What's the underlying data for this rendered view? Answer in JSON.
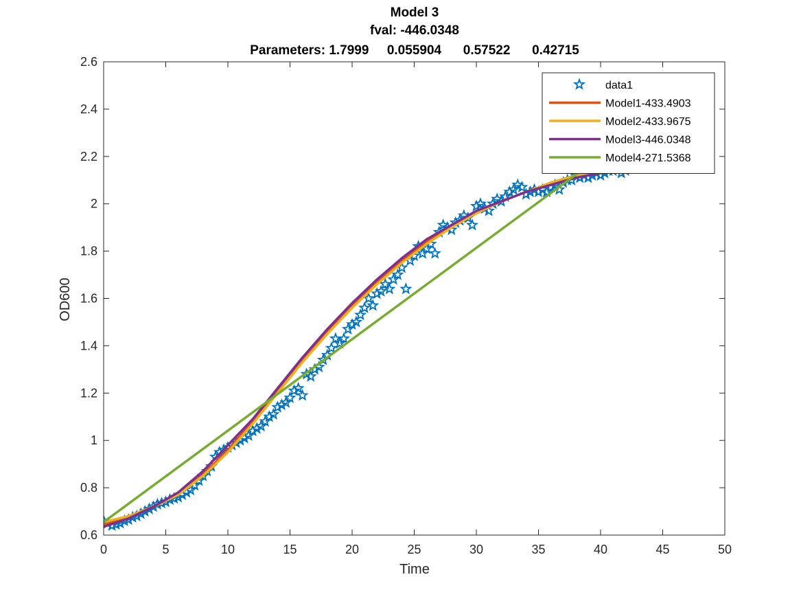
{
  "chart_data": {
    "type": "line",
    "title": "Model 3",
    "subtitle": "fval: -446.0348",
    "parameters_line": "Parameters: 1.7999     0.055904      0.57522      0.42715",
    "xlabel": "Time",
    "ylabel": "OD600",
    "xlim": [
      0,
      50
    ],
    "ylim": [
      0.6,
      2.6
    ],
    "x_ticks": [
      0,
      5,
      10,
      15,
      20,
      25,
      30,
      35,
      40,
      45,
      50
    ],
    "y_ticks": [
      0.6,
      0.8,
      1.0,
      1.2,
      1.4,
      1.6,
      1.8,
      2.0,
      2.2,
      2.4,
      2.6
    ],
    "y_tick_labels": [
      "0.6",
      "0.8",
      "1",
      "1.2",
      "1.4",
      "1.6",
      "1.8",
      "2",
      "2.2",
      "2.4",
      "2.6"
    ],
    "grid": false,
    "legend_position": "top-right",
    "series": [
      {
        "name": "data1",
        "kind": "scatter",
        "marker": "pentagram",
        "color": "#0072BD",
        "x": [
          0,
          0.33,
          0.67,
          1,
          1.33,
          1.67,
          2,
          2.33,
          2.67,
          3,
          3.33,
          3.67,
          4,
          4.33,
          4.67,
          5,
          5.33,
          5.67,
          6,
          6.33,
          6.67,
          7,
          7.33,
          7.67,
          8,
          8.33,
          8.67,
          9,
          9.33,
          9.67,
          10,
          10.33,
          10.67,
          11,
          11.33,
          11.67,
          12,
          12.33,
          12.67,
          13,
          13.33,
          13.67,
          14,
          14.33,
          14.67,
          15,
          15.33,
          15.67,
          16,
          16.33,
          16.67,
          17,
          17.33,
          17.67,
          18,
          18.33,
          18.67,
          19,
          19.33,
          19.67,
          20,
          20.33,
          20.67,
          21,
          21.33,
          21.67,
          22,
          22.33,
          22.67,
          23,
          23.33,
          23.67,
          24,
          24.33,
          24.67,
          25,
          25.33,
          25.67,
          26,
          26.33,
          26.67,
          27,
          27.33,
          27.67,
          28,
          28.33,
          28.67,
          29,
          29.33,
          29.67,
          30,
          30.33,
          30.67,
          31,
          31.33,
          31.67,
          32,
          32.33,
          32.67,
          33,
          33.33,
          33.67,
          34,
          34.33,
          34.67,
          35,
          35.33,
          35.67,
          36,
          36.33,
          36.67,
          37,
          37.33,
          37.67,
          38,
          38.33,
          38.67,
          39,
          39.33,
          39.67,
          40,
          40.33,
          40.67,
          41,
          41.33,
          41.67,
          42,
          42.33,
          42.67,
          43,
          43.33,
          43.67,
          44,
          44.33
        ],
        "y": [
          0.66,
          0.65,
          0.64,
          0.645,
          0.65,
          0.66,
          0.665,
          0.675,
          0.68,
          0.69,
          0.7,
          0.71,
          0.72,
          0.73,
          0.735,
          0.74,
          0.75,
          0.755,
          0.76,
          0.77,
          0.78,
          0.79,
          0.81,
          0.83,
          0.85,
          0.87,
          0.89,
          0.93,
          0.95,
          0.96,
          0.97,
          0.98,
          0.99,
          1.0,
          1.01,
          1.02,
          1.04,
          1.05,
          1.06,
          1.08,
          1.1,
          1.11,
          1.14,
          1.15,
          1.16,
          1.18,
          1.21,
          1.22,
          1.19,
          1.28,
          1.27,
          1.3,
          1.31,
          1.34,
          1.36,
          1.39,
          1.43,
          1.41,
          1.43,
          1.47,
          1.49,
          1.5,
          1.53,
          1.56,
          1.6,
          1.57,
          1.62,
          1.63,
          1.66,
          1.64,
          1.68,
          1.7,
          1.73,
          1.64,
          1.76,
          1.78,
          1.82,
          1.79,
          1.81,
          1.83,
          1.79,
          1.88,
          1.91,
          1.9,
          1.89,
          1.92,
          1.93,
          1.95,
          1.94,
          1.91,
          1.99,
          2.0,
          1.98,
          1.97,
          2.0,
          2.02,
          2.01,
          2.03,
          2.05,
          2.06,
          2.08,
          2.07,
          2.04,
          2.05,
          2.06,
          2.05,
          2.06,
          2.05,
          2.07,
          2.08,
          2.06,
          2.09,
          2.1,
          2.1,
          2.12,
          2.11,
          2.12,
          2.11,
          2.12,
          2.13,
          2.12,
          2.13,
          2.14,
          2.14,
          2.15,
          2.13,
          2.14,
          2.16,
          2.15,
          2.16,
          2.17,
          2.16,
          2.17,
          2.18
        ]
      },
      {
        "name": "Model1-433.4903",
        "kind": "line",
        "color": "#D95319",
        "x": [
          0,
          2,
          4,
          6,
          8,
          10,
          12,
          14,
          16,
          18,
          20,
          22,
          24,
          26,
          28,
          30,
          32,
          34,
          36,
          38,
          40,
          42,
          44,
          46.5
        ],
        "y": [
          0.645,
          0.675,
          0.72,
          0.77,
          0.855,
          0.96,
          1.08,
          1.21,
          1.34,
          1.46,
          1.57,
          1.67,
          1.76,
          1.84,
          1.9,
          1.96,
          2.01,
          2.05,
          2.08,
          2.11,
          2.13,
          2.15,
          2.17,
          2.19
        ]
      },
      {
        "name": "Model2-433.9675",
        "kind": "line",
        "color": "#EDB120",
        "x": [
          0,
          2,
          4,
          6,
          8,
          10,
          12,
          14,
          16,
          18,
          20,
          22,
          24,
          26,
          28,
          30,
          32,
          34,
          36,
          38,
          40,
          42,
          44,
          46.5
        ],
        "y": [
          0.655,
          0.68,
          0.72,
          0.77,
          0.85,
          0.95,
          1.07,
          1.2,
          1.33,
          1.45,
          1.56,
          1.66,
          1.75,
          1.83,
          1.9,
          1.96,
          2.01,
          2.05,
          2.09,
          2.12,
          2.14,
          2.16,
          2.18,
          2.2
        ]
      },
      {
        "name": "Model3-446.0348",
        "kind": "line",
        "color": "#7E2F8E",
        "x": [
          0,
          2,
          4,
          6,
          8,
          10,
          12,
          14,
          16,
          18,
          20,
          22,
          24,
          26,
          28,
          30,
          32,
          34,
          36,
          38,
          40,
          42,
          44,
          46.5
        ],
        "y": [
          0.635,
          0.67,
          0.72,
          0.78,
          0.87,
          0.98,
          1.09,
          1.22,
          1.35,
          1.47,
          1.58,
          1.68,
          1.77,
          1.85,
          1.91,
          1.97,
          2.01,
          2.05,
          2.08,
          2.11,
          2.13,
          2.15,
          2.17,
          2.19
        ]
      },
      {
        "name": "Model4-271.5368",
        "kind": "line",
        "color": "#77AC30",
        "x": [
          0,
          40
        ],
        "y": [
          0.655,
          2.2
        ]
      }
    ]
  }
}
